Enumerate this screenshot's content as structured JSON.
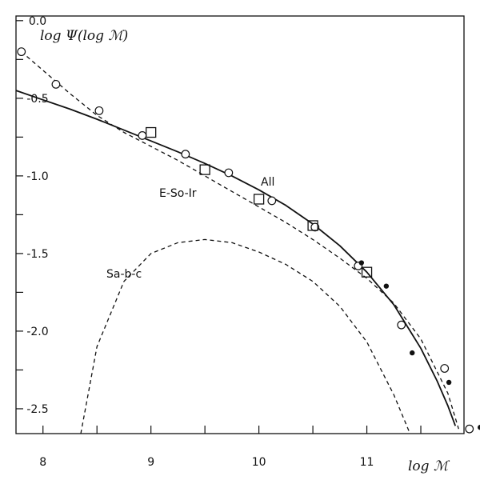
{
  "chart_data": {
    "type": "line",
    "title": "",
    "xlabel": "log ℳ",
    "ylabel": "log Ψ(log ℳ)",
    "xlim": [
      7.75,
      11.9
    ],
    "ylim": [
      -2.66,
      0.03
    ],
    "grid": false,
    "x_ticks": [
      8,
      8.5,
      9,
      9.5,
      10,
      10.5,
      11,
      11.5
    ],
    "x_tick_labels": [
      "8",
      "",
      "9",
      "",
      "10",
      "",
      "11",
      ""
    ],
    "y_ticks": [
      0.0,
      -0.25,
      -0.5,
      -0.75,
      -1.0,
      -1.25,
      -1.5,
      -1.75,
      -2.0,
      -2.25,
      -2.5
    ],
    "y_tick_labels": [
      "0.0",
      "",
      "-0.5",
      "",
      "-1.0",
      "",
      "-1.5",
      "",
      "-2.0",
      "",
      "-2.5"
    ],
    "series": [
      {
        "name": "All",
        "style": "solid-line",
        "x": [
          7.75,
          8.0,
          8.25,
          8.5,
          8.75,
          9.0,
          9.25,
          9.5,
          9.75,
          10.0,
          10.25,
          10.5,
          10.75,
          11.0,
          11.25,
          11.5,
          11.65,
          11.75,
          11.82
        ],
        "y": [
          -0.45,
          -0.51,
          -0.57,
          -0.635,
          -0.705,
          -0.775,
          -0.845,
          -0.92,
          -1.0,
          -1.09,
          -1.19,
          -1.31,
          -1.45,
          -1.62,
          -1.83,
          -2.11,
          -2.32,
          -2.48,
          -2.61
        ]
      },
      {
        "name": "E-So-Ir",
        "style": "dashed-line",
        "x": [
          7.8,
          8.0,
          8.25,
          8.5,
          8.75,
          9.0,
          9.25,
          9.5,
          9.75,
          10.0,
          10.25,
          10.5,
          10.75,
          11.0,
          11.25,
          11.5,
          11.75,
          11.85
        ],
        "y": [
          -0.2,
          -0.32,
          -0.47,
          -0.61,
          -0.72,
          -0.81,
          -0.9,
          -1.0,
          -1.1,
          -1.2,
          -1.3,
          -1.41,
          -1.53,
          -1.66,
          -1.82,
          -2.05,
          -2.4,
          -2.63
        ]
      },
      {
        "name": "Sa-b-c",
        "style": "dashed-line",
        "x": [
          8.35,
          8.5,
          8.75,
          9.0,
          9.25,
          9.5,
          9.75,
          10.0,
          10.25,
          10.5,
          10.75,
          11.0,
          11.25,
          11.4
        ],
        "y": [
          -2.66,
          -2.1,
          -1.68,
          -1.5,
          -1.43,
          -1.41,
          -1.43,
          -1.49,
          -1.57,
          -1.68,
          -1.84,
          -2.07,
          -2.41,
          -2.66
        ]
      }
    ],
    "points": [
      {
        "marker": "open-circle",
        "x": [
          7.8,
          8.12,
          8.52,
          8.92,
          9.32,
          9.72,
          10.12,
          10.52,
          10.92,
          11.32,
          11.72,
          11.95
        ],
        "y": [
          -0.2,
          -0.41,
          -0.58,
          -0.74,
          -0.86,
          -0.98,
          -1.16,
          -1.33,
          -1.58,
          -1.96,
          -2.24,
          -2.63
        ]
      },
      {
        "marker": "open-square",
        "x": [
          9.0,
          9.5,
          10.0,
          10.5,
          11.0
        ],
        "y": [
          -0.72,
          -0.96,
          -1.15,
          -1.32,
          -1.62
        ]
      },
      {
        "marker": "filled-dot",
        "x": [
          10.95,
          11.18,
          11.42,
          11.76,
          12.05
        ],
        "y": [
          -1.56,
          -1.71,
          -2.14,
          -2.33,
          -2.62
        ]
      }
    ],
    "annotations": [
      "All",
      "E-So-Ir",
      "Sa-b-c"
    ]
  }
}
